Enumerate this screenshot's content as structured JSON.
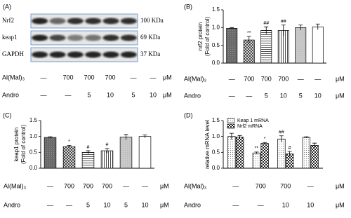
{
  "blot": {
    "panel_label": "(A)",
    "rows": [
      {
        "name": "Nrf2",
        "size": "100 KDa"
      },
      {
        "name": "keap1",
        "size": "69 KDa"
      },
      {
        "name": "GAPDH",
        "size": "37 KDa"
      }
    ],
    "conditions": [
      {
        "label": "Al(Mal)₃",
        "values": [
          "—",
          700,
          700,
          700,
          "—",
          "—"
        ],
        "unit": "μM"
      },
      {
        "label": "Andro",
        "values": [
          "—",
          "—",
          5,
          10,
          5,
          10
        ],
        "unit": "μM"
      }
    ]
  },
  "chart_data": [
    {
      "type": "bar",
      "panel_label": "(B)",
      "ylabel": "nrf2 protein",
      "ylabel2": "(Fold of control)",
      "values": [
        0.98,
        0.65,
        0.92,
        0.92,
        1.0,
        1.02
      ],
      "errors": [
        0.02,
        0.1,
        0.1,
        0.15,
        0.07,
        0.08
      ],
      "annotations": [
        null,
        "**",
        "##",
        "##",
        null,
        null
      ],
      "ylim": [
        0,
        1.5
      ],
      "yticks": [
        {
          "value": 0,
          "label": "0.0"
        },
        0.5,
        {
          "value": 1,
          "label": "1.0"
        },
        1.5
      ],
      "conditions": [
        {
          "label": "Al(Mal)₃",
          "values": [
            "—",
            700,
            700,
            700,
            "—",
            "—"
          ],
          "unit": "μM"
        },
        {
          "label": "Andro",
          "values": [
            "—",
            "—",
            5,
            10,
            5,
            10
          ],
          "unit": "μM"
        }
      ]
    },
    {
      "type": "bar",
      "panel_label": "(C)",
      "ylabel": "keap1 protein",
      "ylabel2": "(Fold of control)",
      "values": [
        0.97,
        0.68,
        0.5,
        0.55,
        0.98,
        1.0
      ],
      "errors": [
        0.02,
        0.04,
        0.05,
        0.07,
        0.08,
        0.05
      ],
      "annotations": [
        null,
        "*",
        "#",
        "#",
        null,
        null
      ],
      "ylim": [
        0,
        1.5
      ],
      "yticks": [
        {
          "value": 0,
          "label": "0.0"
        },
        0.5,
        {
          "value": 1,
          "label": "1.0"
        },
        1.5
      ],
      "conditions": [
        {
          "label": "Al(Mal)₃",
          "values": [
            "—",
            700,
            700,
            700,
            "—",
            "—"
          ],
          "unit": "μM"
        },
        {
          "label": "Andro",
          "values": [
            "—",
            "—",
            5,
            10,
            5,
            10
          ],
          "unit": "μM"
        }
      ]
    },
    {
      "type": "bar",
      "panel_label": "(D)",
      "ylabel": "relative mRNA level",
      "series": [
        {
          "name": "Keap 1 mRNA",
          "values": [
            1.0,
            0.48,
            0.92,
            0.97
          ],
          "errors": [
            0.1,
            0.03,
            0.1,
            0.02
          ],
          "annotations": [
            null,
            "**",
            "##",
            null
          ]
        },
        {
          "name": "Nrf2 mRNA",
          "values": [
            0.98,
            0.78,
            0.45,
            0.72
          ],
          "errors": [
            0.05,
            0.03,
            0.08,
            0.07
          ],
          "annotations": [
            null,
            "*",
            "#",
            null
          ]
        }
      ],
      "ylim": [
        0,
        1.5
      ],
      "yticks": [
        {
          "value": 0,
          "label": "0.0"
        },
        0.5,
        {
          "value": 1,
          "label": "1.0"
        },
        1.5
      ],
      "conditions": [
        {
          "label": "Al(Mal)₃",
          "values": [
            "—",
            700,
            700,
            "—"
          ],
          "unit": "μM"
        },
        {
          "label": "Andro",
          "values": [
            "—",
            "—",
            10,
            10
          ],
          "unit": "μM"
        }
      ]
    }
  ]
}
